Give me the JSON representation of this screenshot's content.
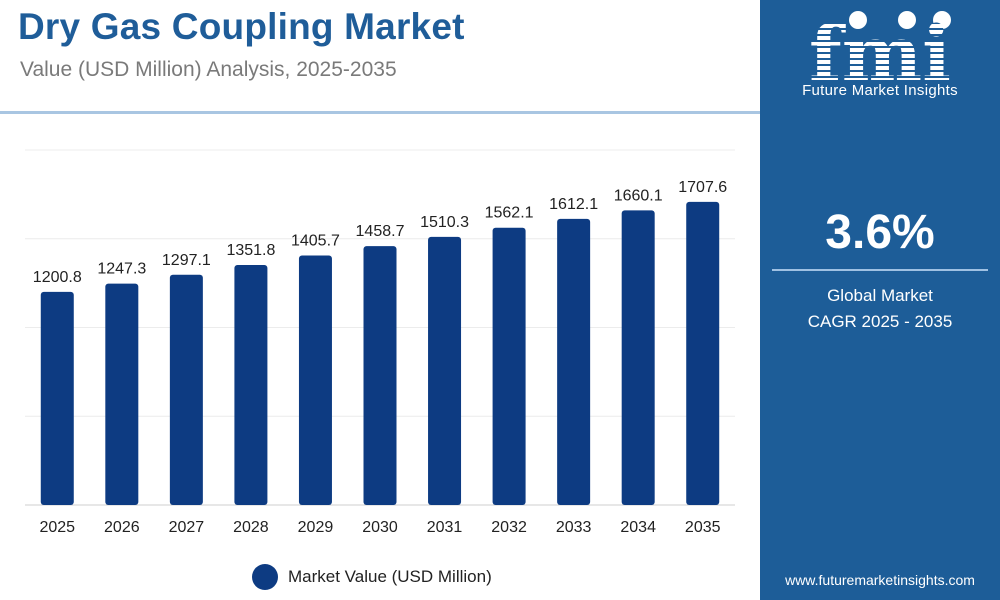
{
  "header": {
    "title": "Dry Gas Coupling Market",
    "subtitle": "Value (USD Million) Analysis, 2025-2035"
  },
  "sidebar": {
    "logo_letters": "fmi",
    "logo_text": "Future Market Insights",
    "cagr_value": "3.6%",
    "cagr_label_line1": "Global Market",
    "cagr_label_line2": "CAGR 2025 - 2035",
    "website": "www.futuremarketinsights.com"
  },
  "colors": {
    "bar": "#0d3b82",
    "title": "#1f5d99",
    "sidebar_bg": "#1d5d98"
  },
  "chart_data": {
    "type": "bar",
    "categories": [
      "2025",
      "2026",
      "2027",
      "2028",
      "2029",
      "2030",
      "2031",
      "2032",
      "2033",
      "2034",
      "2035"
    ],
    "series": [
      {
        "name": "Market Value (USD Million)",
        "values": [
          1200.8,
          1247.3,
          1297.1,
          1351.8,
          1405.7,
          1458.7,
          1510.3,
          1562.1,
          1612.1,
          1660.1,
          1707.6
        ]
      }
    ],
    "data_labels": [
      "1200.8",
      "1247.3",
      "1297.1",
      "1351.8",
      "1405.7",
      "1458.7",
      "1510.3",
      "1562.1",
      "1612.1",
      "1660.1",
      "1707.6"
    ],
    "ylim": [
      0,
      2000
    ],
    "grid": true,
    "legend": "bottom-center"
  }
}
